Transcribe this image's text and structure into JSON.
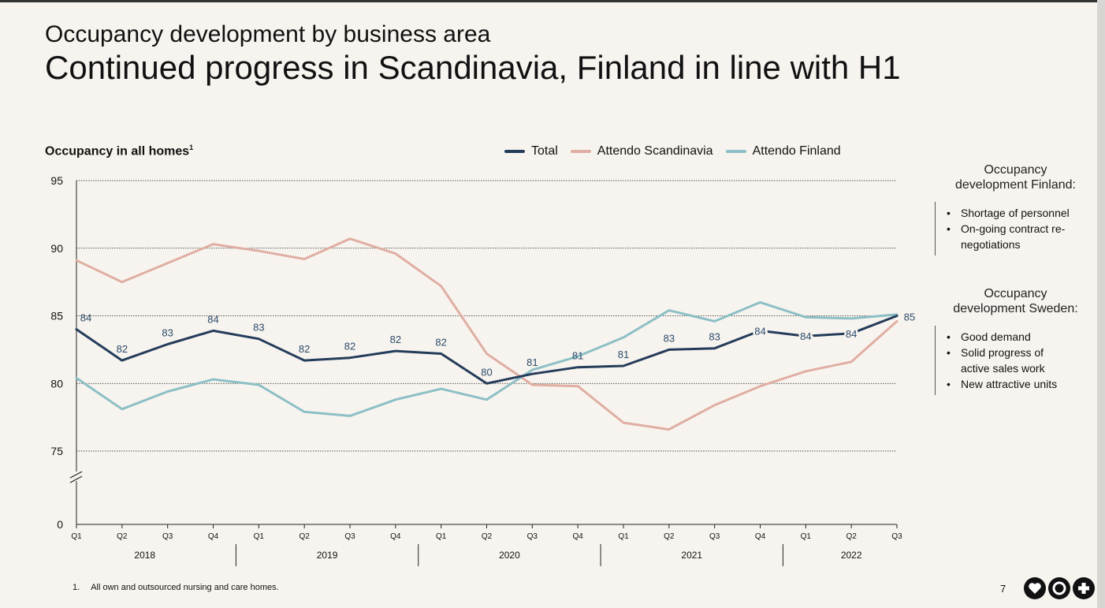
{
  "header": {
    "kicker": "Occupancy development by business area",
    "title": "Continued progress in Scandinavia, Finland in line with H1"
  },
  "chart_title": {
    "text": "Occupancy in all homes",
    "superscript": "1"
  },
  "colors": {
    "total": "#243c5a",
    "scandinavia": "#e0aea3",
    "finland": "#8dbfc6",
    "label_text": "#2a4a6a"
  },
  "chart_data": {
    "type": "line",
    "x": [
      "Q1",
      "Q2",
      "Q3",
      "Q4",
      "Q1",
      "Q2",
      "Q3",
      "Q4",
      "Q1",
      "Q2",
      "Q3",
      "Q4",
      "Q1",
      "Q2",
      "Q3",
      "Q4",
      "Q1",
      "Q2",
      "Q3"
    ],
    "years": [
      {
        "label": "2018",
        "start": 0,
        "end": 3
      },
      {
        "label": "2019",
        "start": 4,
        "end": 7
      },
      {
        "label": "2020",
        "start": 8,
        "end": 11
      },
      {
        "label": "2021",
        "start": 12,
        "end": 15
      },
      {
        "label": "2022",
        "start": 16,
        "end": 18
      }
    ],
    "yticks": [
      0,
      75,
      80,
      85,
      90,
      95
    ],
    "ylim": [
      75,
      95
    ],
    "axis_break": true,
    "grid": true,
    "legend_position": "top",
    "series": [
      {
        "name": "Total",
        "key": "total",
        "values": [
          84.0,
          81.7,
          82.9,
          83.9,
          83.3,
          81.7,
          81.9,
          82.4,
          82.2,
          80.0,
          80.7,
          81.2,
          81.3,
          82.5,
          82.6,
          83.9,
          83.5,
          83.7,
          85.0
        ],
        "labels": [
          "84",
          "82",
          "83",
          "84",
          "83",
          "82",
          "82",
          "82",
          "82",
          "80",
          "81",
          "81",
          "81",
          "83",
          "83",
          "84",
          "84",
          "84",
          "85"
        ]
      },
      {
        "name": "Attendo Scandinavia",
        "key": "scandinavia",
        "values": [
          89.1,
          87.5,
          88.9,
          90.3,
          89.8,
          89.2,
          90.7,
          89.6,
          87.2,
          82.2,
          79.9,
          79.8,
          77.1,
          76.6,
          78.4,
          79.8,
          80.9,
          81.6,
          84.6
        ]
      },
      {
        "name": "Attendo Finland",
        "key": "finland",
        "values": [
          80.4,
          78.1,
          79.4,
          80.3,
          79.9,
          77.9,
          77.6,
          78.8,
          79.6,
          78.8,
          81.0,
          82.0,
          83.4,
          85.4,
          84.6,
          86.0,
          84.9,
          84.8,
          85.1
        ]
      }
    ]
  },
  "sidebar": {
    "finland": {
      "heading_line1": "Occupancy",
      "heading_line2": "development Finland:",
      "bullets": [
        "Shortage of personnel",
        "On-going contract re-",
        "negotiations"
      ]
    },
    "sweden": {
      "heading_line1": "Occupancy",
      "heading_line2": "development Sweden:",
      "bullets": [
        "Good demand",
        "Solid progress of",
        "active sales work",
        "New attractive units"
      ]
    }
  },
  "footnote": {
    "number": "1.",
    "text": "All own and outsourced nursing and care homes."
  },
  "page_number": "7",
  "logo": {
    "icons": [
      "heart-icon",
      "target-icon",
      "plus-icon"
    ]
  }
}
